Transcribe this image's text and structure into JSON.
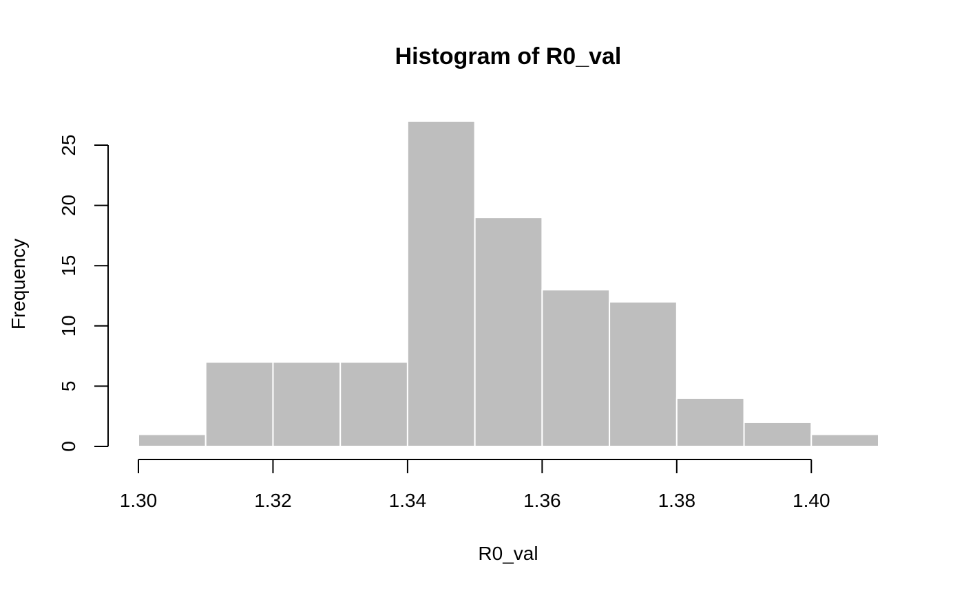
{
  "chart_data": {
    "type": "bar",
    "subtype": "histogram",
    "title": "Histogram of R0_val",
    "xlabel": "R0_val",
    "ylabel": "Frequency",
    "bin_edges": [
      1.3,
      1.31,
      1.32,
      1.33,
      1.34,
      1.35,
      1.36,
      1.37,
      1.38,
      1.39,
      1.4,
      1.41
    ],
    "values": [
      1,
      7,
      7,
      7,
      27,
      19,
      13,
      12,
      4,
      2,
      1
    ],
    "xlim": [
      1.3,
      1.41
    ],
    "ylim": [
      0,
      27
    ],
    "x_ticks": [
      1.3,
      1.32,
      1.34,
      1.36,
      1.38,
      1.4
    ],
    "x_tick_labels": [
      "1.30",
      "1.32",
      "1.34",
      "1.36",
      "1.38",
      "1.40"
    ],
    "y_ticks": [
      0,
      5,
      10,
      15,
      20,
      25
    ],
    "y_tick_labels": [
      "0",
      "5",
      "10",
      "15",
      "20",
      "25"
    ],
    "bar_color": "#bebebe",
    "bar_border_color": "#ffffff",
    "grid": false,
    "legend": "none"
  }
}
